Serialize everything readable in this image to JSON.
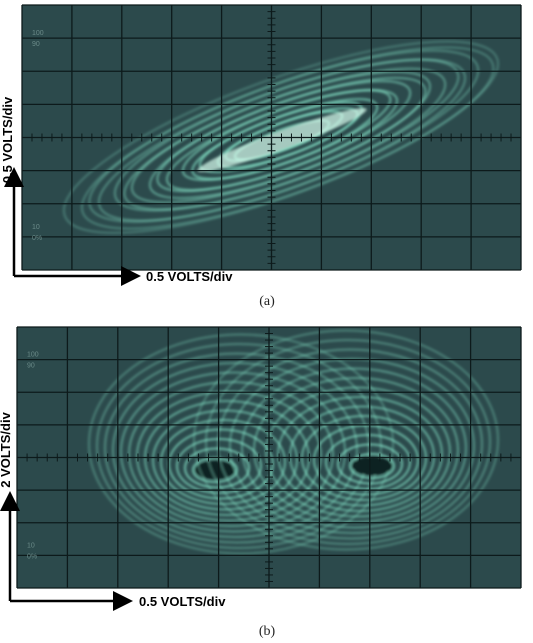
{
  "panels": [
    {
      "y_label": "0.5 VOLTS/div",
      "x_label": "0.5 VOLTS/div",
      "caption": "(a)",
      "graticule_labels": [
        "100",
        "90",
        "10",
        "0%"
      ]
    },
    {
      "y_label": "2 VOLTS/div",
      "x_label": "0.5 VOLTS/div",
      "caption": "(b)",
      "graticule_labels": [
        "100",
        "90",
        "10",
        "0%"
      ]
    }
  ]
}
